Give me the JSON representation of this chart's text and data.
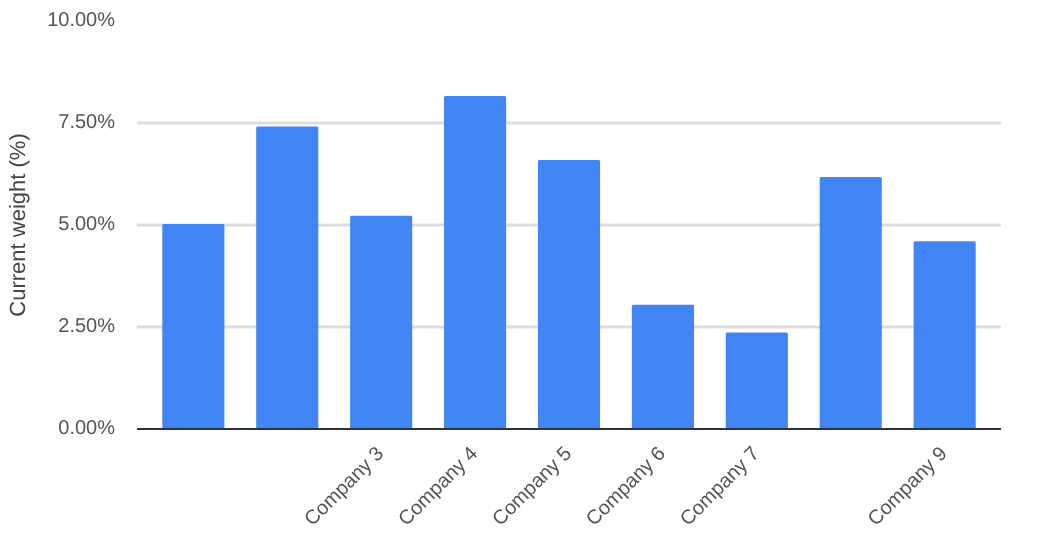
{
  "chart_data": {
    "type": "bar",
    "ylabel": "Current weight (%)",
    "categories": [
      null,
      null,
      "Company 3",
      "Company 4",
      "Company 5",
      "Company 6",
      "Company 7",
      null,
      "Company 9"
    ],
    "values": [
      5.0,
      7.39,
      5.2,
      8.14,
      6.57,
      3.02,
      2.34,
      6.15,
      4.58
    ],
    "color": "#4285f4",
    "ylim": [
      0,
      10
    ],
    "yticks": [
      {
        "value": 0,
        "label": "0.00%"
      },
      {
        "value": 2.5,
        "label": "2.50%"
      },
      {
        "value": 5,
        "label": "5.00%"
      },
      {
        "value": 7.5,
        "label": "7.50%"
      },
      {
        "value": 10,
        "label": "10.00%"
      }
    ],
    "grid": "y"
  }
}
